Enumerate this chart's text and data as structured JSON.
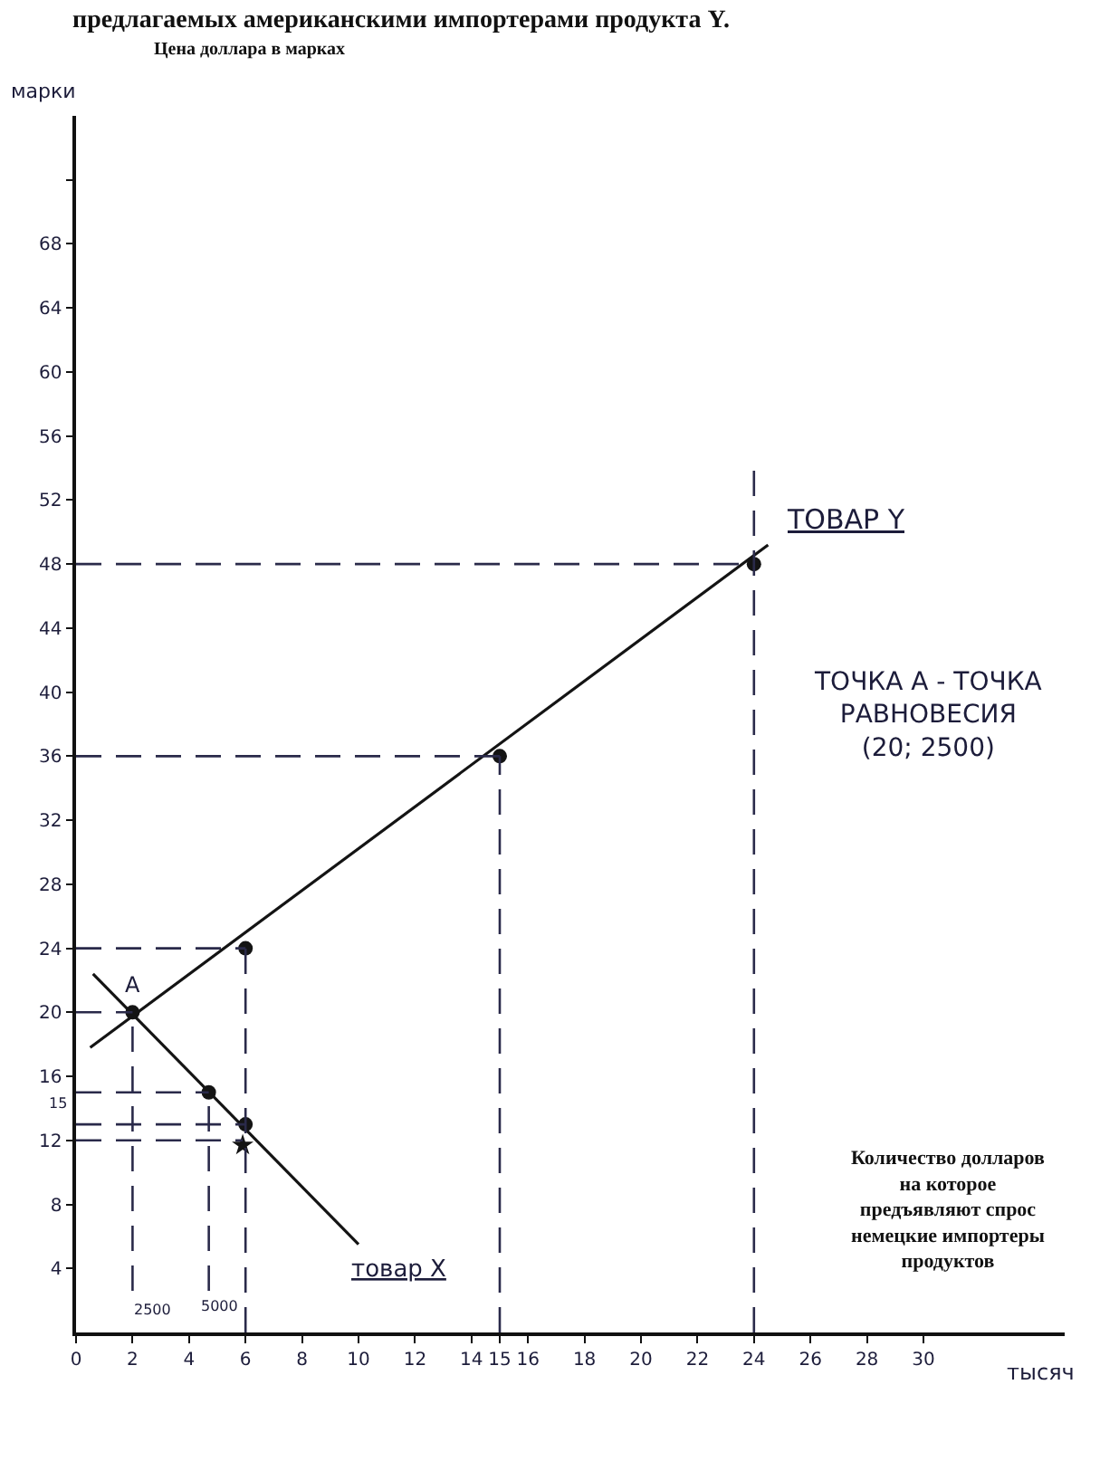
{
  "chart_data": {
    "type": "line",
    "title": "предлагаемых американскими импортерами продукта Y.",
    "subtitle": "Цена доллара в марках",
    "ylabel": "марки",
    "xlabel": "тысяч",
    "annotations": [
      {
        "text": "A",
        "x": 2,
        "y": 20
      },
      {
        "text": "15",
        "x": 0,
        "y": 15
      },
      "2500",
      "5000",
      "ТОЧКА А - ТОЧКА\nРАВНОВЕСИЯ\n(20; 2500)",
      "Количество долларов\nна которое\nпредъявляют спрос\nнемецкие импортеры\nпродуктов"
    ],
    "xlim": [
      0,
      35
    ],
    "ylim": [
      0,
      76
    ],
    "xticks": [
      0,
      2,
      4,
      6,
      8,
      10,
      12,
      14,
      15,
      16,
      18,
      20,
      22,
      24,
      26,
      28,
      30
    ],
    "yticks": [
      4,
      8,
      12,
      16,
      20,
      24,
      28,
      32,
      36,
      40,
      44,
      48,
      52,
      56,
      60,
      64,
      68,
      {
        "value": 72,
        "label": null
      }
    ],
    "series": [
      {
        "name": "ТОВАР Y",
        "color": "#141414",
        "x": [
          0.5,
          24.5
        ],
        "values": [
          17.8,
          49.2
        ]
      },
      {
        "name": "товар X",
        "color": "#141414",
        "x": [
          0.6,
          10
        ],
        "values": [
          22.4,
          5.5
        ]
      },
      {
        "type": "scatter",
        "marker": "circle",
        "color": "#141414",
        "x": [
          2,
          6,
          15,
          24,
          4.7,
          6
        ],
        "values": [
          20,
          24,
          36,
          48,
          15,
          13
        ]
      },
      {
        "type": "scatter",
        "marker": "star",
        "color": "#141414",
        "x": [
          5.9
        ],
        "values": [
          11.7
        ]
      },
      {
        "line_style": "dashed",
        "color": "#2a2a4a",
        "x": [
          0,
          24
        ],
        "values": [
          48,
          48
        ]
      },
      {
        "line_style": "dashed",
        "color": "#2a2a4a",
        "x": [
          0,
          15
        ],
        "values": [
          36,
          36
        ]
      },
      {
        "line_style": "dashed",
        "color": "#2a2a4a",
        "x": [
          0,
          6
        ],
        "values": [
          24,
          24
        ]
      },
      {
        "line_style": "dashed",
        "color": "#2a2a4a",
        "x": [
          0,
          2
        ],
        "values": [
          20,
          20
        ]
      },
      {
        "line_style": "dashed",
        "color": "#2a2a4a",
        "x": [
          0,
          4.7
        ],
        "values": [
          15,
          15
        ]
      },
      {
        "line_style": "dashed",
        "color": "#2a2a4a",
        "x": [
          0,
          6
        ],
        "values": [
          13,
          13
        ]
      },
      {
        "line_style": "dashed",
        "color": "#2a2a4a",
        "x": [
          0,
          5.9
        ],
        "values": [
          12,
          12
        ]
      },
      {
        "line_style": "dashed",
        "color": "#2a2a4a",
        "x": [
          24,
          24
        ],
        "values": [
          0,
          54
        ]
      },
      {
        "line_style": "dashed",
        "color": "#2a2a4a",
        "x": [
          15,
          15
        ],
        "values": [
          0,
          36
        ]
      },
      {
        "line_style": "dashed",
        "color": "#2a2a4a",
        "x": [
          6,
          6
        ],
        "values": [
          0,
          24
        ]
      },
      {
        "line_style": "dashed",
        "color": "#2a2a4a",
        "x": [
          4.7,
          4.7
        ],
        "values": [
          2.6,
          15
        ]
      },
      {
        "line_style": "dashed",
        "color": "#2a2a4a",
        "x": [
          2,
          2
        ],
        "values": [
          2.6,
          20
        ]
      }
    ]
  }
}
